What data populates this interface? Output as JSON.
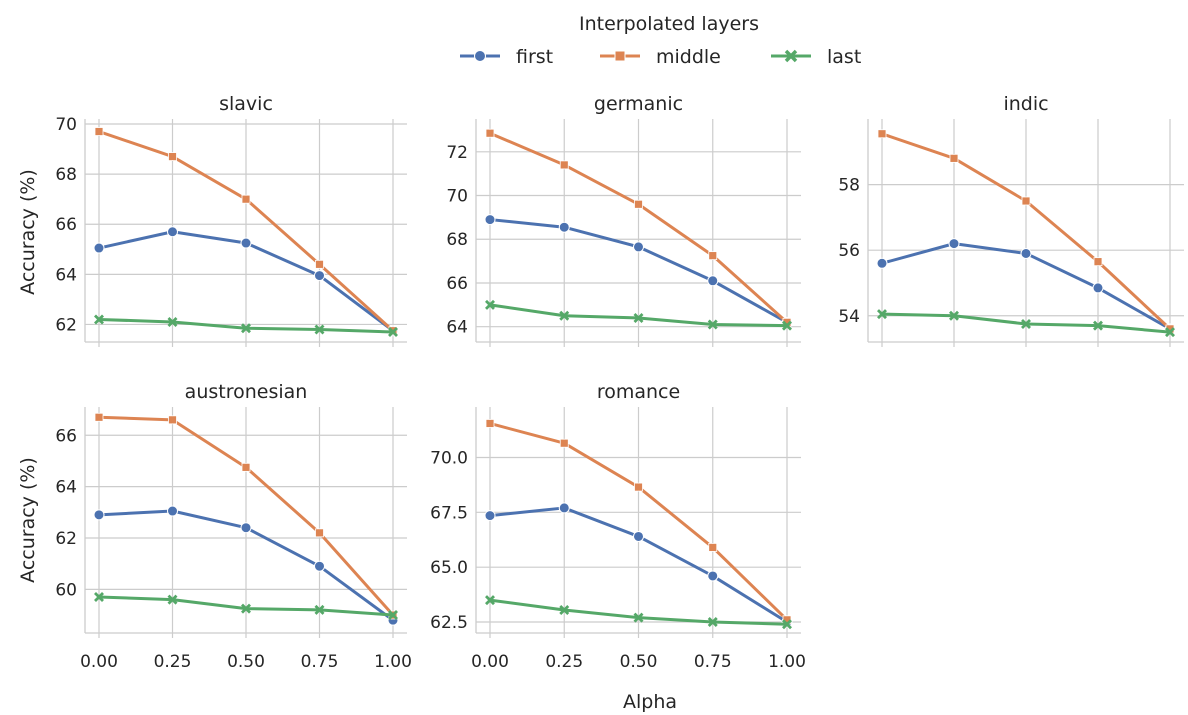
{
  "legend": {
    "title": "Interpolated layers",
    "entries": [
      {
        "name": "first",
        "color": "#4c72b0",
        "marker": "circle"
      },
      {
        "name": "middle",
        "color": "#dd8452",
        "marker": "square"
      },
      {
        "name": "last",
        "color": "#55a868",
        "marker": "x"
      }
    ]
  },
  "xlabel": "Alpha",
  "ylabel": "Accuracy (%)",
  "chart_data": [
    {
      "type": "line",
      "title": "slavic",
      "x": [
        0.0,
        0.25,
        0.5,
        0.75,
        1.0
      ],
      "x_tick_labels": [
        "0.00",
        "0.25",
        "0.50",
        "0.75",
        "1.00"
      ],
      "ylim": [
        61.3,
        70.2
      ],
      "y_ticks": [
        62,
        64,
        66,
        68,
        70
      ],
      "y_tick_labels": [
        "62",
        "64",
        "66",
        "68",
        "70"
      ],
      "grid": true,
      "series": [
        {
          "name": "first",
          "values": [
            65.05,
            65.7,
            65.25,
            63.95,
            61.75
          ]
        },
        {
          "name": "middle",
          "values": [
            69.7,
            68.7,
            67.0,
            64.4,
            61.75
          ]
        },
        {
          "name": "last",
          "values": [
            62.2,
            62.1,
            61.85,
            61.8,
            61.7
          ]
        }
      ]
    },
    {
      "type": "line",
      "title": "germanic",
      "x": [
        0.0,
        0.25,
        0.5,
        0.75,
        1.0
      ],
      "x_tick_labels": [
        "0.00",
        "0.25",
        "0.50",
        "0.75",
        "1.00"
      ],
      "ylim": [
        63.3,
        73.5
      ],
      "y_ticks": [
        64,
        66,
        68,
        70,
        72
      ],
      "y_tick_labels": [
        "64",
        "66",
        "68",
        "70",
        "72"
      ],
      "grid": true,
      "series": [
        {
          "name": "first",
          "values": [
            68.9,
            68.55,
            67.65,
            66.1,
            64.2
          ]
        },
        {
          "name": "middle",
          "values": [
            72.85,
            71.4,
            69.6,
            67.25,
            64.2
          ]
        },
        {
          "name": "last",
          "values": [
            65.0,
            64.5,
            64.4,
            64.1,
            64.05
          ]
        }
      ]
    },
    {
      "type": "line",
      "title": "indic",
      "x": [
        0.0,
        0.25,
        0.5,
        0.75,
        1.0
      ],
      "x_tick_labels": [
        "0.00",
        "0.25",
        "0.50",
        "0.75",
        "1.00"
      ],
      "ylim": [
        53.2,
        60.0
      ],
      "y_ticks": [
        54,
        56,
        58
      ],
      "y_tick_labels": [
        "54",
        "56",
        "58"
      ],
      "grid": true,
      "series": [
        {
          "name": "first",
          "values": [
            55.6,
            56.2,
            55.9,
            54.85,
            53.6
          ]
        },
        {
          "name": "middle",
          "values": [
            59.55,
            58.8,
            57.5,
            55.65,
            53.6
          ]
        },
        {
          "name": "last",
          "values": [
            54.05,
            54.0,
            53.75,
            53.7,
            53.5
          ]
        }
      ]
    },
    {
      "type": "line",
      "title": "austronesian",
      "x": [
        0.0,
        0.25,
        0.5,
        0.75,
        1.0
      ],
      "x_tick_labels": [
        "0.00",
        "0.25",
        "0.50",
        "0.75",
        "1.00"
      ],
      "ylim": [
        58.3,
        67.1
      ],
      "y_ticks": [
        60,
        62,
        64,
        66
      ],
      "y_tick_labels": [
        "60",
        "62",
        "64",
        "66"
      ],
      "grid": true,
      "series": [
        {
          "name": "first",
          "values": [
            62.9,
            63.05,
            62.4,
            60.9,
            58.8
          ]
        },
        {
          "name": "middle",
          "values": [
            66.7,
            66.6,
            64.75,
            62.2,
            59.0
          ]
        },
        {
          "name": "last",
          "values": [
            59.7,
            59.6,
            59.25,
            59.2,
            59.0
          ]
        }
      ]
    },
    {
      "type": "line",
      "title": "romance",
      "x": [
        0.0,
        0.25,
        0.5,
        0.75,
        1.0
      ],
      "x_tick_labels": [
        "0.00",
        "0.25",
        "0.50",
        "0.75",
        "1.00"
      ],
      "ylim": [
        62.0,
        72.3
      ],
      "y_ticks": [
        62.5,
        65.0,
        67.5,
        70.0
      ],
      "y_tick_labels": [
        "62.5",
        "65.0",
        "67.5",
        "70.0"
      ],
      "grid": true,
      "series": [
        {
          "name": "first",
          "values": [
            67.35,
            67.7,
            66.4,
            64.6,
            62.5
          ]
        },
        {
          "name": "middle",
          "values": [
            71.55,
            70.65,
            68.65,
            65.9,
            62.6
          ]
        },
        {
          "name": "last",
          "values": [
            63.5,
            63.05,
            62.7,
            62.5,
            62.4
          ]
        }
      ]
    }
  ]
}
